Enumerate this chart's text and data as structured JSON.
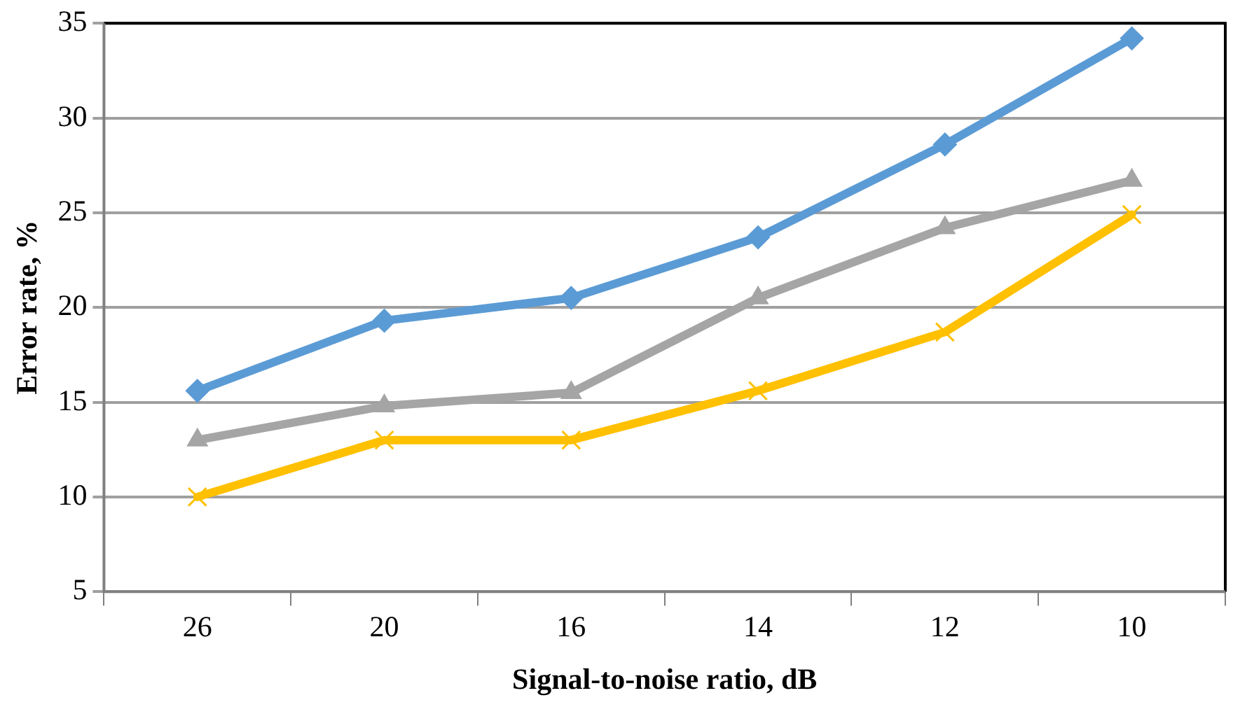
{
  "chart_data": {
    "type": "line",
    "xlabel": "Signal-to-noise ratio, dB",
    "ylabel": "Error rate, %",
    "categories": [
      "26",
      "20",
      "16",
      "14",
      "12",
      "10"
    ],
    "series": [
      {
        "color": "#5b9bd5",
        "marker": "diamond",
        "values": [
          15.6,
          19.3,
          20.5,
          23.7,
          28.6,
          34.2
        ]
      },
      {
        "color": "#a5a5a5",
        "marker": "triangle",
        "values": [
          13.0,
          14.8,
          15.5,
          20.5,
          24.2,
          26.7
        ]
      },
      {
        "color": "#ffc000",
        "marker": "cross",
        "values": [
          10.0,
          13.0,
          13.0,
          15.6,
          18.7,
          24.9
        ]
      }
    ],
    "ylim": [
      5,
      35
    ],
    "yticks": [
      5,
      10,
      15,
      20,
      25,
      30,
      35
    ],
    "grid": "y",
    "legend": false
  }
}
